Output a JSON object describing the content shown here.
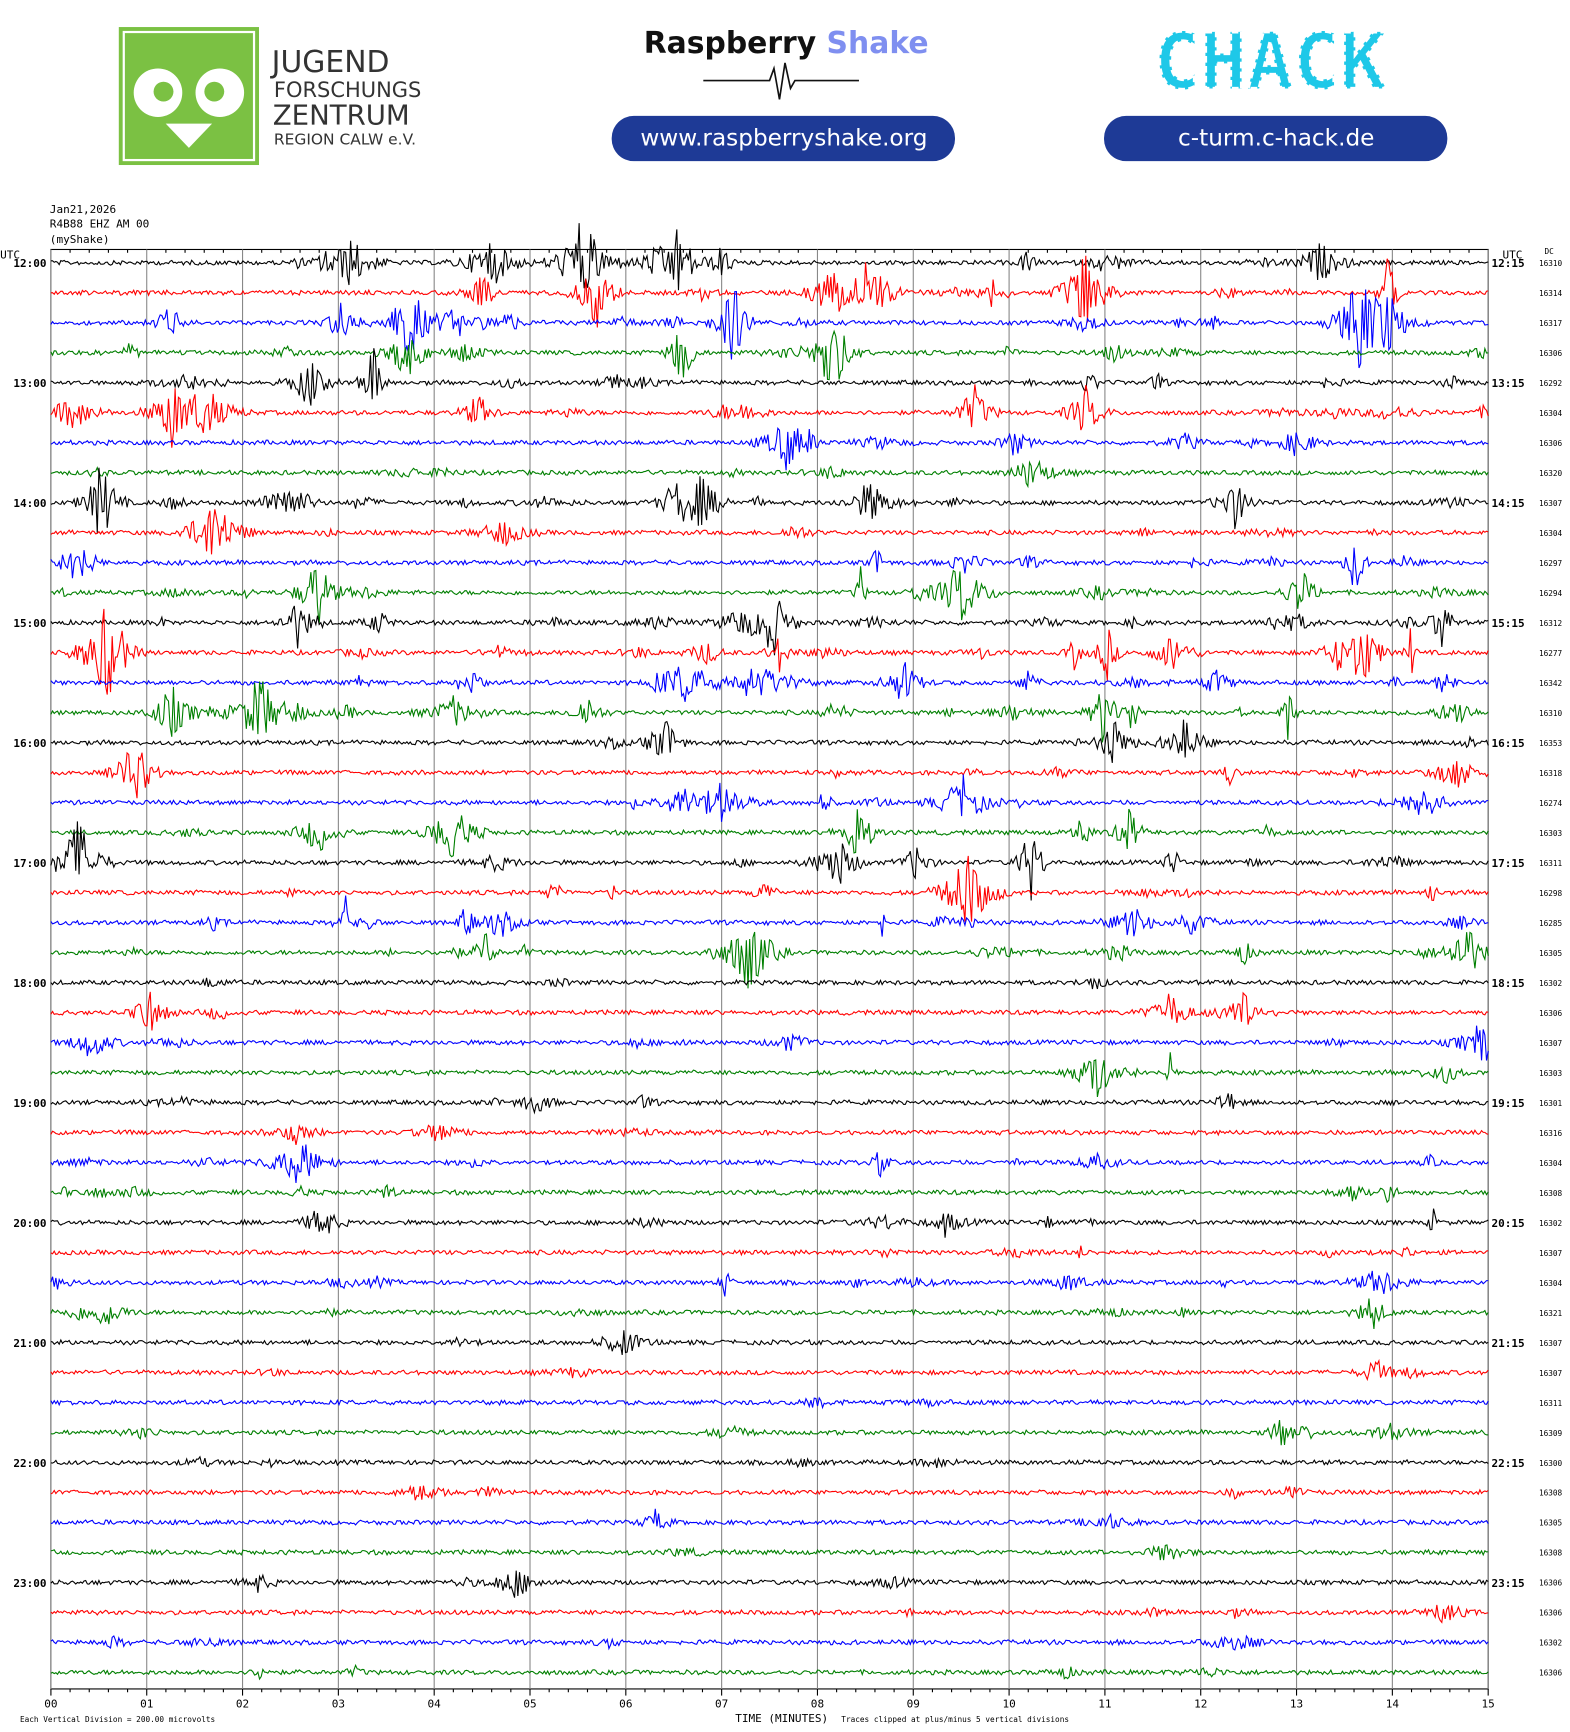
{
  "header": {
    "jfz_lines": [
      "JUGEND",
      "FORSCHUNGS",
      "ZENTRUM",
      "REGION CALW e.V."
    ],
    "rs_brand_1": "Raspberry",
    "rs_brand_2": "Shake",
    "rs_url": "www.raspberryshake.org",
    "chack_logo": "CHACK",
    "chack_url": "c-turm.c-hack.de"
  },
  "chart_data": {
    "type": "helicorder",
    "date": "Jan21,2026",
    "station": "R4B88 EHZ AM 00",
    "source": "(myShake)",
    "left_axis_label": "UTC",
    "right_axis_label": "UTC",
    "dc_label": "DC",
    "colors": [
      "#000000",
      "#ff0000",
      "#0000ff",
      "#007f00"
    ],
    "left_times": [
      "12:00",
      "13:00",
      "14:00",
      "15:00",
      "16:00",
      "17:00",
      "18:00",
      "19:00",
      "20:00",
      "21:00",
      "22:00",
      "23:00"
    ],
    "right_times": [
      "12:15",
      "13:15",
      "14:15",
      "15:15",
      "16:15",
      "17:15",
      "18:15",
      "19:15",
      "20:15",
      "21:15",
      "22:15",
      "23:15"
    ],
    "dc_values": [
      16310,
      16314,
      16317,
      16306,
      16292,
      16304,
      16306,
      16320,
      16307,
      16304,
      16297,
      16294,
      16312,
      16277,
      16342,
      16310,
      16353,
      16318,
      16274,
      16303,
      16311,
      16298,
      16285,
      16305,
      16302,
      16306,
      16307,
      16303,
      16301,
      16316,
      16304,
      16308,
      16302,
      16307,
      16304,
      16321,
      16307,
      16307,
      16311,
      16309,
      16300,
      16308,
      16305,
      16308,
      16306,
      16306,
      16302,
      16306
    ],
    "xlim": [
      0,
      15
    ],
    "xticks": [
      {
        "value": 0,
        "label": "00"
      },
      {
        "value": 1,
        "label": "01"
      },
      {
        "value": 2,
        "label": "02"
      },
      {
        "value": 3,
        "label": "03"
      },
      {
        "value": 4,
        "label": "04"
      },
      {
        "value": 5,
        "label": "05"
      },
      {
        "value": 6,
        "label": "06"
      },
      {
        "value": 7,
        "label": "07"
      },
      {
        "value": 8,
        "label": "08"
      },
      {
        "value": 9,
        "label": "09"
      },
      10,
      11,
      12,
      13,
      14,
      15
    ],
    "xlabel": "TIME (MINUTES)",
    "footnote_left": "Each Vertical Division =  200.00 microvolts",
    "footnote_right": "Traces clipped at plus/minus 5 vertical divisions",
    "grid": true
  }
}
